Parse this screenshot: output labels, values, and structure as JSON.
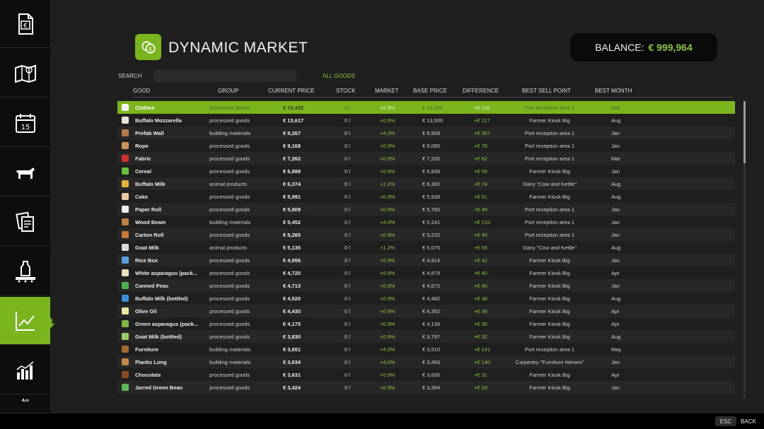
{
  "header": {
    "title": "DYNAMIC MARKET",
    "balance_label": "BALANCE:",
    "balance_value": "€ 999,964"
  },
  "search": {
    "label": "SEARCH",
    "placeholder": "",
    "filter": "ALL GOODS"
  },
  "columns": {
    "good": "GOOD",
    "group": "GROUP",
    "current_price": "CURRENT PRICE",
    "stock": "STOCK",
    "market": "MARKET",
    "base_price": "BASE PRICE",
    "difference": "DIFFERENCE",
    "best_sell_point": "BEST SELL POINT",
    "best_month": "BEST MONTH"
  },
  "sidebar": {
    "items": [
      {
        "icon": "finance-document-icon"
      },
      {
        "icon": "map-icon"
      },
      {
        "icon": "calendar-icon",
        "text": "15"
      },
      {
        "icon": "animals-icon"
      },
      {
        "icon": "contracts-icon"
      },
      {
        "icon": "production-icon"
      },
      {
        "icon": "price-trend-icon",
        "active": true
      },
      {
        "icon": "statistics-icon"
      },
      {
        "icon": "more-icon"
      }
    ]
  },
  "rows": [
    {
      "good": "Clothes",
      "group": "processed goods",
      "price": "€ 15,432",
      "stock": "0 l",
      "market": "+0.9%",
      "base": "€ 15,300",
      "diff": "+€ 132",
      "sell": "Port reception area 1",
      "month": "Mar",
      "selected": true,
      "icon_color": "#f4f4f4"
    },
    {
      "good": "Buffalo Mozzarella",
      "group": "processed goods",
      "price": "€ 13,617",
      "stock": "0 l",
      "market": "+0.9%",
      "base": "€ 13,500",
      "diff": "+€ 117",
      "sell": "Farmer Kiosk Big",
      "month": "Aug",
      "icon_color": "#e8e4da"
    },
    {
      "good": "Prefab Wall",
      "group": "building materials",
      "price": "€ 9,267",
      "stock": "0 l",
      "market": "+4.0%",
      "base": "€ 8,909",
      "diff": "+€ 357",
      "sell": "Port reception area 1",
      "month": "Jan",
      "icon_color": "#b07a4a"
    },
    {
      "good": "Rope",
      "group": "processed goods",
      "price": "€ 9,168",
      "stock": "0 l",
      "market": "+0.9%",
      "base": "€ 9,090",
      "diff": "+€ 78",
      "sell": "Port reception area 1",
      "month": "Jan",
      "icon_color": "#c9925a"
    },
    {
      "good": "Fabric",
      "group": "processed goods",
      "price": "€ 7,262",
      "stock": "0 l",
      "market": "+0.9%",
      "base": "€ 7,200",
      "diff": "+€ 62",
      "sell": "Port reception area 1",
      "month": "Mar",
      "icon_color": "#d0302a"
    },
    {
      "good": "Cereal",
      "group": "processed goods",
      "price": "€ 6,899",
      "stock": "0 l",
      "market": "+0.9%",
      "base": "€ 6,839",
      "diff": "+€ 59",
      "sell": "Farmer Kiosk Big",
      "month": "Jan",
      "icon_color": "#6bbf3a"
    },
    {
      "good": "Buffalo Milk",
      "group": "animal products",
      "price": "€ 6,374",
      "stock": "0 l",
      "market": "+1.2%",
      "base": "€ 6,300",
      "diff": "+€ 74",
      "sell": "Dairy \"Cow and Kettle\"",
      "month": "Aug",
      "icon_color": "#e0b23a"
    },
    {
      "good": "Cake",
      "group": "processed goods",
      "price": "€ 5,991",
      "stock": "0 l",
      "market": "+0.9%",
      "base": "€ 5,939",
      "diff": "+€ 51",
      "sell": "Farmer Kiosk Big",
      "month": "Aug",
      "icon_color": "#e6c8a0"
    },
    {
      "good": "Paper Roll",
      "group": "processed goods",
      "price": "€ 5,809",
      "stock": "0 l",
      "market": "+0.9%",
      "base": "€ 5,760",
      "diff": "+€ 49",
      "sell": "Port reception area 1",
      "month": "Jan",
      "icon_color": "#f0f0f0"
    },
    {
      "good": "Wood Beam",
      "group": "building materials",
      "price": "€ 5,452",
      "stock": "0 l",
      "market": "+4.0%",
      "base": "€ 5,241",
      "diff": "+€ 210",
      "sell": "Port reception area 1",
      "month": "Jan",
      "icon_color": "#c08040"
    },
    {
      "good": "Carton Roll",
      "group": "processed goods",
      "price": "€ 5,265",
      "stock": "0 l",
      "market": "+0.9%",
      "base": "€ 5,220",
      "diff": "+€ 45",
      "sell": "Port reception area 1",
      "month": "Jan",
      "icon_color": "#c8763a"
    },
    {
      "good": "Goat Milk",
      "group": "animal products",
      "price": "€ 5,135",
      "stock": "0 l",
      "market": "+1.2%",
      "base": "€ 5,075",
      "diff": "+€ 59",
      "sell": "Dairy \"Cow and Kettle\"",
      "month": "Aug",
      "icon_color": "#dcdcdc"
    },
    {
      "good": "Rice Box",
      "group": "processed goods",
      "price": "€ 4,956",
      "stock": "0 l",
      "market": "+0.9%",
      "base": "€ 4,914",
      "diff": "+€ 42",
      "sell": "Farmer Kiosk Big",
      "month": "Jan",
      "icon_color": "#5aa0d8"
    },
    {
      "good": "White asparagus (pack...",
      "group": "processed goods",
      "price": "€ 4,720",
      "stock": "0 l",
      "market": "+0.9%",
      "base": "€ 4,679",
      "diff": "+€ 40",
      "sell": "Farmer Kiosk Big",
      "month": "Apr",
      "icon_color": "#e8e0c0"
    },
    {
      "good": "Canned Peas",
      "group": "processed goods",
      "price": "€ 4,713",
      "stock": "0 l",
      "market": "+0.9%",
      "base": "€ 4,672",
      "diff": "+€ 40",
      "sell": "Farmer Kiosk Big",
      "month": "Jan",
      "icon_color": "#4caf50"
    },
    {
      "good": "Buffalo Milk (bottled)",
      "group": "processed goods",
      "price": "€ 4,520",
      "stock": "0 l",
      "market": "+0.9%",
      "base": "€ 4,482",
      "diff": "+€ 38",
      "sell": "Farmer Kiosk Big",
      "month": "Aug",
      "icon_color": "#3a8fd8"
    },
    {
      "good": "Olive Oil",
      "group": "processed goods",
      "price": "€ 4,430",
      "stock": "0 l",
      "market": "+0.9%",
      "base": "€ 4,392",
      "diff": "+€ 38",
      "sell": "Farmer Kiosk Big",
      "month": "Apr",
      "icon_color": "#e8e8a0"
    },
    {
      "good": "Green asparagus (pack...",
      "group": "processed goods",
      "price": "€ 4,175",
      "stock": "0 l",
      "market": "+0.9%",
      "base": "€ 4,139",
      "diff": "+€ 35",
      "sell": "Farmer Kiosk Big",
      "month": "Apr",
      "icon_color": "#7cb342"
    },
    {
      "good": "Goat Milk (bottled)",
      "group": "processed goods",
      "price": "€ 3,830",
      "stock": "0 l",
      "market": "+0.9%",
      "base": "€ 3,797",
      "diff": "+€ 32",
      "sell": "Farmer Kiosk Big",
      "month": "Aug",
      "icon_color": "#9ccc65"
    },
    {
      "good": "Furniture",
      "group": "building materials",
      "price": "€ 3,651",
      "stock": "0 l",
      "market": "+4.0%",
      "base": "€ 3,510",
      "diff": "+€ 141",
      "sell": "Port reception area 1",
      "month": "May",
      "icon_color": "#a0692e"
    },
    {
      "good": "Planks Long",
      "group": "building materials",
      "price": "€ 3,634",
      "stock": "0 l",
      "market": "+4.0%",
      "base": "€ 3,493",
      "diff": "+€ 140",
      "sell": "Carpentry \"Furniture Heroes\"",
      "month": "Jan",
      "icon_color": "#c0864a"
    },
    {
      "good": "Chocolate",
      "group": "processed goods",
      "price": "€ 3,631",
      "stock": "0 l",
      "market": "+0.9%",
      "base": "€ 3,600",
      "diff": "+€ 31",
      "sell": "Farmer Kiosk Big",
      "month": "Apr",
      "icon_color": "#8a4a24"
    },
    {
      "good": "Jarred Green Bean",
      "group": "processed goods",
      "price": "€ 3,424",
      "stock": "0 l",
      "market": "+0.9%",
      "base": "€ 3,394",
      "diff": "+€ 29",
      "sell": "Farmer Kiosk Big",
      "month": "Jan",
      "icon_color": "#5cb85c"
    }
  ],
  "footer": {
    "esc_key": "ESC",
    "back_label": "BACK"
  }
}
